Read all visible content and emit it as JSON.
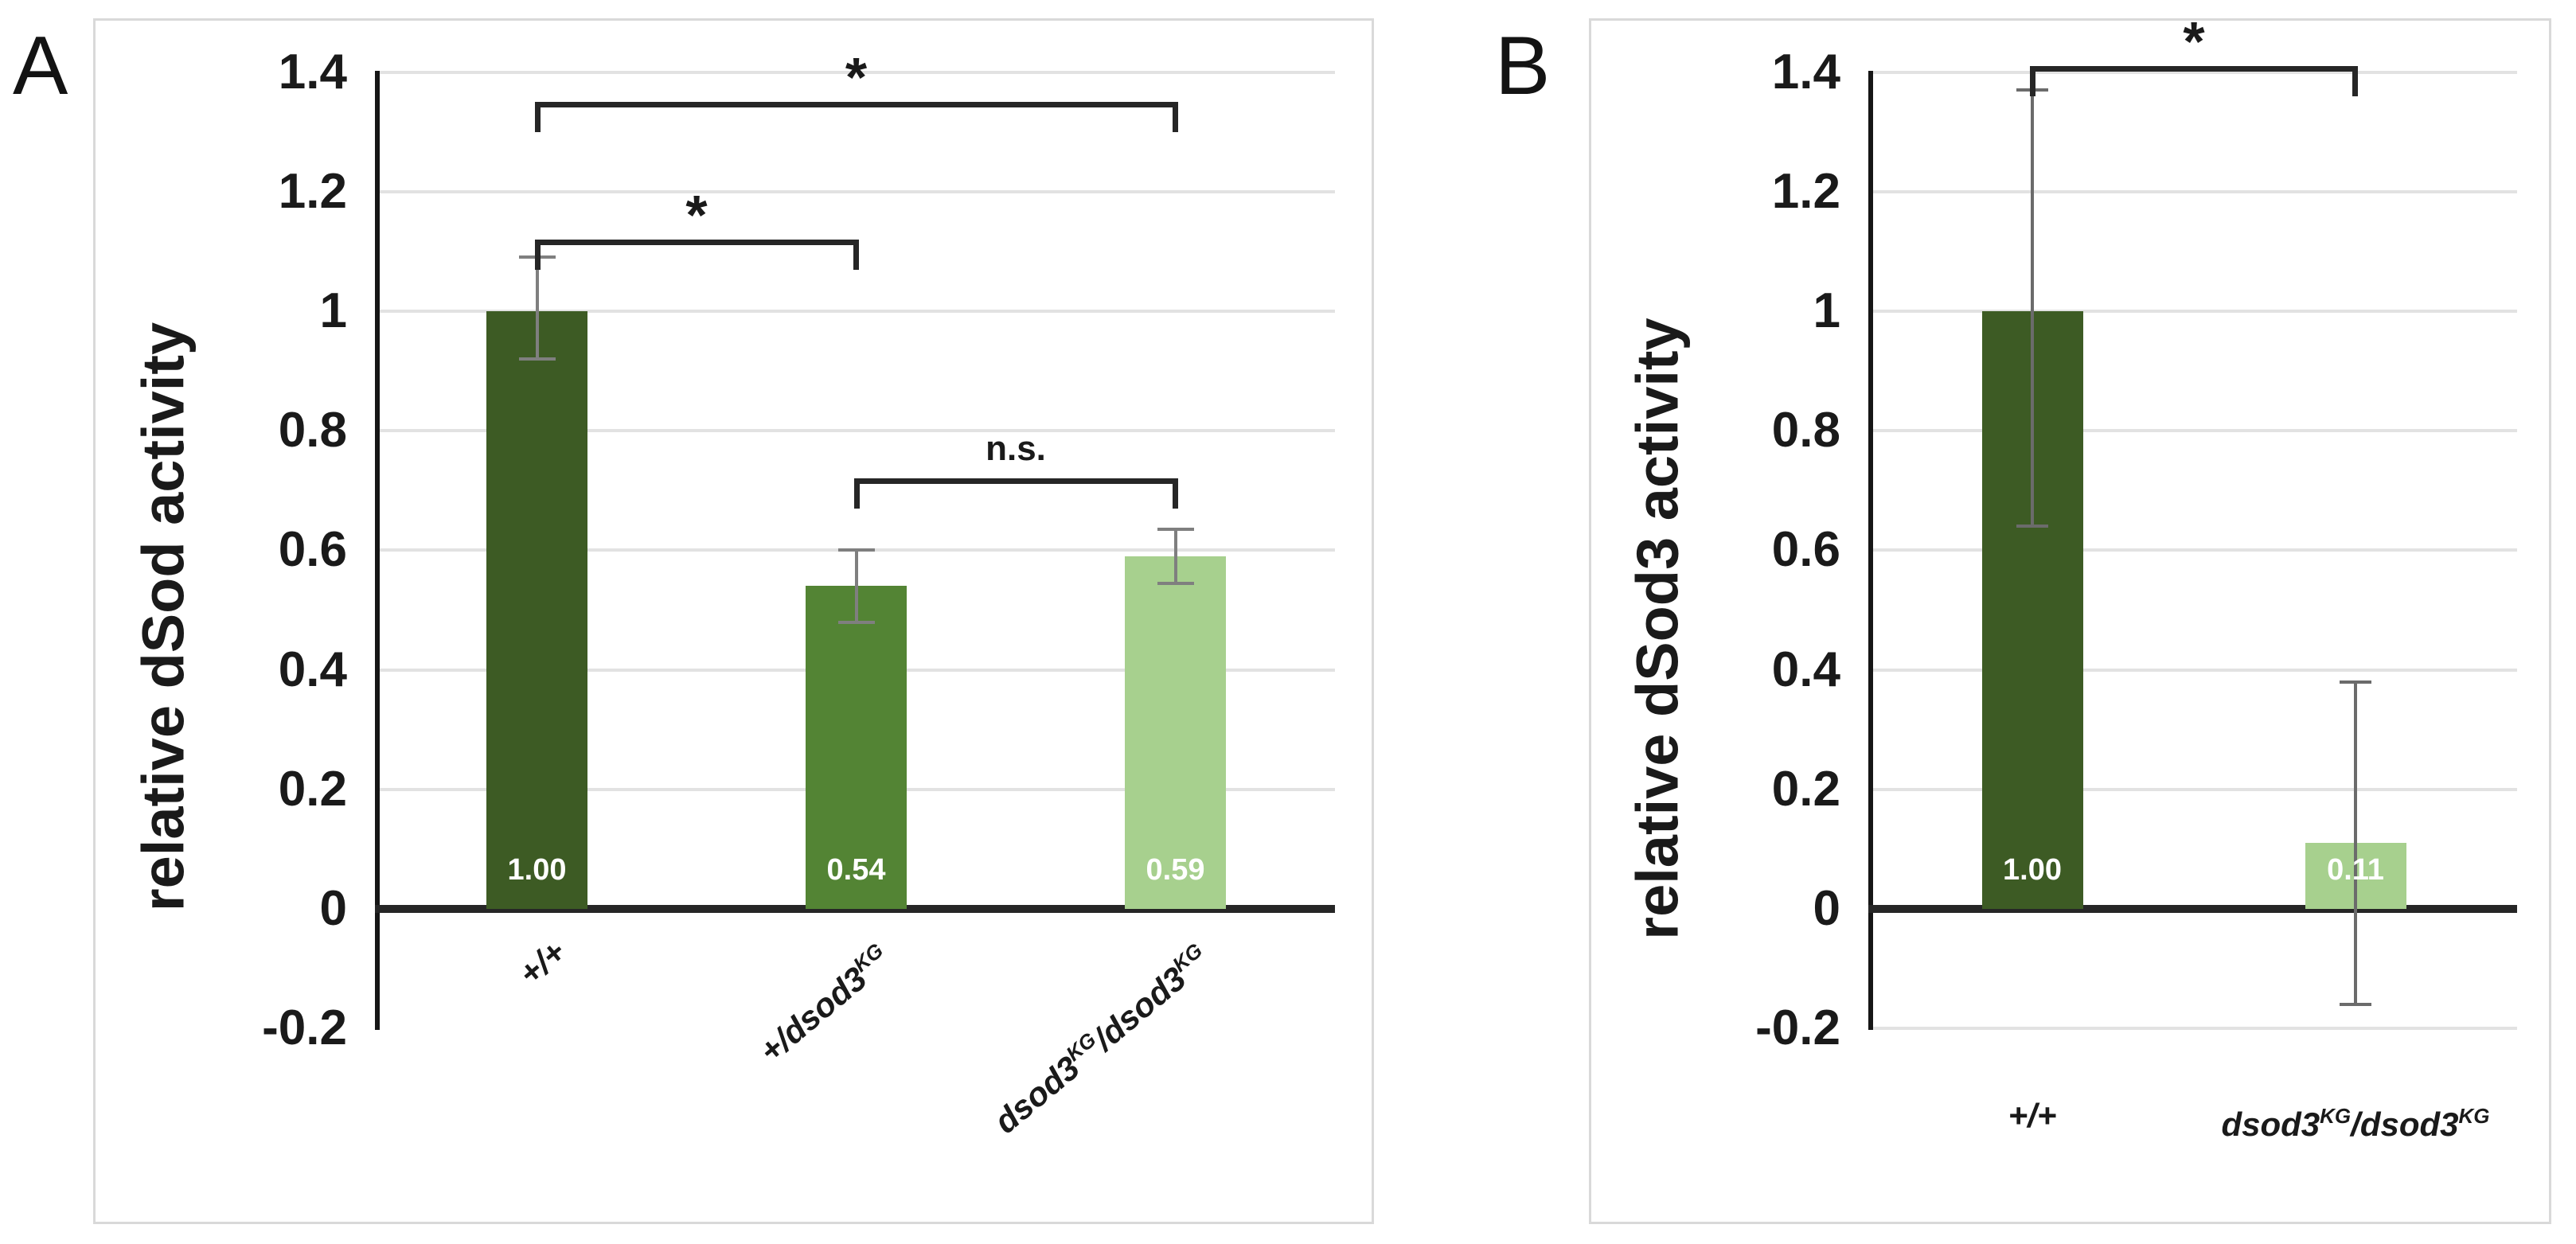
{
  "chart_data": [
    {
      "type": "bar",
      "panel_label": "A",
      "title": "",
      "xlabel": "",
      "ylabel": "relative dSod activity",
      "ylim": [
        -0.2,
        1.4
      ],
      "grid": true,
      "y_ticks": [
        1.4,
        1.2,
        1,
        0.8,
        0.6,
        0.4,
        0.2,
        0,
        -0.2
      ],
      "y_tick_labels": [
        "1.4",
        "1.2",
        "1",
        "0.8",
        "0.6",
        "0.4",
        "0.2",
        "0",
        "-0.2"
      ],
      "gridline_values": [
        1.4,
        1.2,
        1,
        0.8,
        0.6,
        0.4,
        0.2
      ],
      "categories": [
        "+/+",
        "+/dsod3^KG",
        "dsod3^KG/dsod3^KG"
      ],
      "category_segments": [
        [
          {
            "text": "+/+"
          }
        ],
        [
          {
            "text": "+/dsod3"
          },
          {
            "text": "KG",
            "sup": true
          }
        ],
        [
          {
            "text": "dsod3"
          },
          {
            "text": "KG",
            "sup": true
          },
          {
            "text": "/dsod3"
          },
          {
            "text": "KG",
            "sup": true
          }
        ]
      ],
      "values": [
        1.0,
        0.54,
        0.59
      ],
      "value_labels": [
        "1.00",
        "0.54",
        "0.59"
      ],
      "bar_colors": [
        "#3d5b24",
        "#538434",
        "#a7d08e"
      ],
      "error_bars": [
        {
          "low": 0.92,
          "high": 1.09
        },
        {
          "low": 0.48,
          "high": 0.6
        },
        {
          "low": 0.545,
          "high": 0.635
        }
      ],
      "significance": [
        {
          "from": 0,
          "to": 1,
          "label": "*",
          "at": 1.12
        },
        {
          "from": 0,
          "to": 2,
          "label": "*",
          "at": 1.35
        },
        {
          "from": 1,
          "to": 2,
          "label": "n.s.",
          "at": 0.72
        }
      ],
      "x_label_rotation_deg": -40,
      "axis_color": "#161616",
      "gridline_color": "#e2e2e2",
      "error_bar_color": "#7f7f7f",
      "legend": null
    },
    {
      "type": "bar",
      "panel_label": "B",
      "title": "",
      "xlabel": "",
      "ylabel": "relative dSod3 activity",
      "ylim": [
        -0.2,
        1.4
      ],
      "grid": true,
      "y_ticks": [
        1.4,
        1.2,
        1,
        0.8,
        0.6,
        0.4,
        0.2,
        0,
        -0.2
      ],
      "y_tick_labels": [
        "1.4",
        "1.2",
        "1",
        "0.8",
        "0.6",
        "0.4",
        "0.2",
        "0",
        "-0.2"
      ],
      "gridline_values": [
        1.4,
        1.2,
        1,
        0.8,
        0.6,
        0.4,
        0.2,
        -0.2
      ],
      "categories": [
        "+/+",
        "dsod3^KG/dsod3^KG"
      ],
      "category_segments": [
        [
          {
            "text": "+/+"
          }
        ],
        [
          {
            "text": "dsod3"
          },
          {
            "text": "KG",
            "sup": true
          },
          {
            "text": "/dsod3"
          },
          {
            "text": "KG",
            "sup": true
          }
        ]
      ],
      "values": [
        1.0,
        0.11
      ],
      "value_labels": [
        "1.00",
        "0.11"
      ],
      "bar_colors": [
        "#3d5b24",
        "#a7d08e"
      ],
      "error_bars": [
        {
          "low": 0.64,
          "high": 1.37
        },
        {
          "low": -0.16,
          "high": 0.38
        }
      ],
      "significance": [
        {
          "from": 0,
          "to": 1,
          "label": "*",
          "at": 1.41
        }
      ],
      "x_label_rotation_deg": 0,
      "axis_color": "#161616",
      "gridline_color": "#e2e2e2",
      "error_bar_color": "#6b6b6b",
      "legend": null
    }
  ]
}
